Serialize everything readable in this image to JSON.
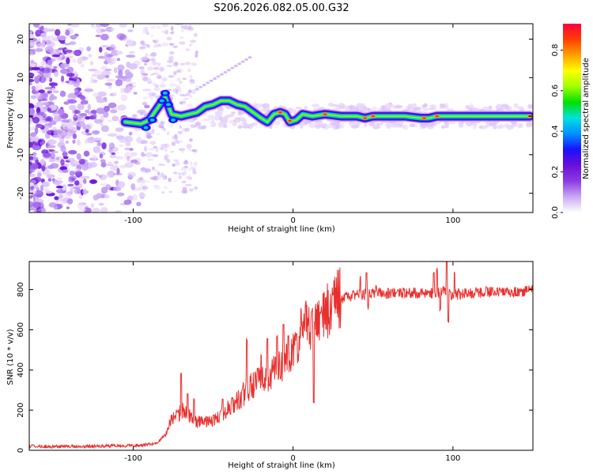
{
  "page": {
    "title": "S206.2026.082.05.00.G32"
  },
  "colors": {
    "signal_line": "#e8302e",
    "frame": "#000000"
  },
  "chart_data": [
    {
      "type": "heatmap",
      "name": "spectrogram",
      "xlabel": "Height of straight line (km)",
      "ylabel": "Frequency (Hz)",
      "xlim": [
        -165,
        150
      ],
      "ylim": [
        -25,
        24
      ],
      "x_ticks": [
        -100,
        0,
        100
      ],
      "y_ticks": [
        -20,
        -10,
        0,
        10,
        20
      ],
      "x_tick_labels": [
        "-100",
        "0",
        "100"
      ],
      "y_tick_labels": [
        "-20",
        "-10",
        "0",
        "10",
        "20"
      ],
      "colorbar": {
        "label": "Normalized spectral amplitude",
        "range": [
          0,
          0.93
        ],
        "ticks": [
          0.0,
          0.2,
          0.4,
          0.6,
          0.8
        ],
        "tick_labels": [
          "0.0",
          "0.2",
          "0.4",
          "0.6",
          "0.8"
        ],
        "colormap": [
          "#ffffff",
          "#c9a8f5",
          "#8b3be0",
          "#6a0fd8",
          "#1a10ff",
          "#0090ff",
          "#00e0e0",
          "#00e000",
          "#a0ff00",
          "#ffff00",
          "#ffa000",
          "#ff4000",
          "#ff0040"
        ]
      },
      "ridge_points": [
        [
          -105,
          -1.5
        ],
        [
          -95,
          -2
        ],
        [
          -90,
          -1
        ],
        [
          -85,
          2
        ],
        [
          -80,
          5
        ],
        [
          -76,
          0.5
        ],
        [
          -70,
          0
        ],
        [
          -60,
          1
        ],
        [
          -55,
          2.5
        ],
        [
          -50,
          3
        ],
        [
          -45,
          4
        ],
        [
          -40,
          4
        ],
        [
          -35,
          3
        ],
        [
          -30,
          2.5
        ],
        [
          -25,
          1
        ],
        [
          -20,
          -0.5
        ],
        [
          -16,
          -1.5
        ],
        [
          -12,
          0.5
        ],
        [
          -8,
          1
        ],
        [
          -5,
          0.5
        ],
        [
          -2,
          -1.5
        ],
        [
          2,
          -1
        ],
        [
          6,
          0.5
        ],
        [
          12,
          0
        ],
        [
          20,
          0.5
        ],
        [
          30,
          0
        ],
        [
          40,
          0
        ],
        [
          45,
          -0.5
        ],
        [
          50,
          0
        ],
        [
          60,
          0
        ],
        [
          70,
          0
        ],
        [
          80,
          -0.5
        ],
        [
          85,
          -0.5
        ],
        [
          90,
          0
        ],
        [
          100,
          0
        ],
        [
          110,
          0
        ],
        [
          120,
          0
        ],
        [
          130,
          0
        ],
        [
          140,
          0
        ],
        [
          148,
          0
        ]
      ]
    },
    {
      "type": "line",
      "name": "snr",
      "xlabel": "Height of straight line (km)",
      "ylabel": "SNR (10 * v/v)",
      "xlim": [
        -165,
        150
      ],
      "ylim": [
        0,
        940
      ],
      "x_ticks": [
        -100,
        0,
        100
      ],
      "y_ticks": [
        0,
        200,
        400,
        600,
        800
      ],
      "x_tick_labels": [
        "-100",
        "0",
        "100"
      ],
      "y_tick_labels": [
        "0",
        "200",
        "400",
        "600",
        "800"
      ],
      "series": [
        {
          "name": "SNR",
          "x": [
            -165,
            -150,
            -130,
            -110,
            -95,
            -85,
            -80,
            -76,
            -72,
            -68,
            -64,
            -60,
            -55,
            -50,
            -45,
            -40,
            -35,
            -30,
            -26,
            -22,
            -18,
            -14,
            -10,
            -6,
            -2,
            0,
            4,
            8,
            12,
            16,
            20,
            26,
            32,
            38,
            44,
            50,
            60,
            70,
            80,
            88,
            94,
            100,
            110,
            120,
            130,
            140,
            150
          ],
          "values": [
            20,
            18,
            20,
            22,
            25,
            35,
            80,
            150,
            180,
            210,
            160,
            140,
            150,
            145,
            180,
            210,
            240,
            290,
            320,
            340,
            360,
            380,
            400,
            420,
            450,
            480,
            520,
            600,
            640,
            680,
            700,
            730,
            760,
            770,
            775,
            785,
            780,
            785,
            780,
            780,
            790,
            775,
            780,
            790,
            785,
            790,
            795
          ]
        }
      ],
      "spikes": [
        [
          -70,
          380
        ],
        [
          -66,
          290
        ],
        [
          -62,
          250
        ],
        [
          -44,
          250
        ],
        [
          -38,
          260
        ],
        [
          -32,
          300
        ],
        [
          -29,
          550
        ],
        [
          -20,
          480
        ],
        [
          -16,
          550
        ],
        [
          -10,
          560
        ],
        [
          -6,
          620
        ],
        [
          -3,
          560
        ],
        [
          2,
          580
        ],
        [
          5,
          700
        ],
        [
          8,
          740
        ],
        [
          12,
          700
        ],
        [
          13,
          240
        ],
        [
          17,
          680
        ],
        [
          25,
          780
        ],
        [
          42,
          860
        ],
        [
          46,
          880
        ],
        [
          47,
          710
        ],
        [
          52,
          810
        ],
        [
          88,
          880
        ],
        [
          90,
          900
        ],
        [
          92,
          700
        ],
        [
          96,
          940
        ],
        [
          97,
          640
        ],
        [
          101,
          880
        ]
      ]
    }
  ]
}
